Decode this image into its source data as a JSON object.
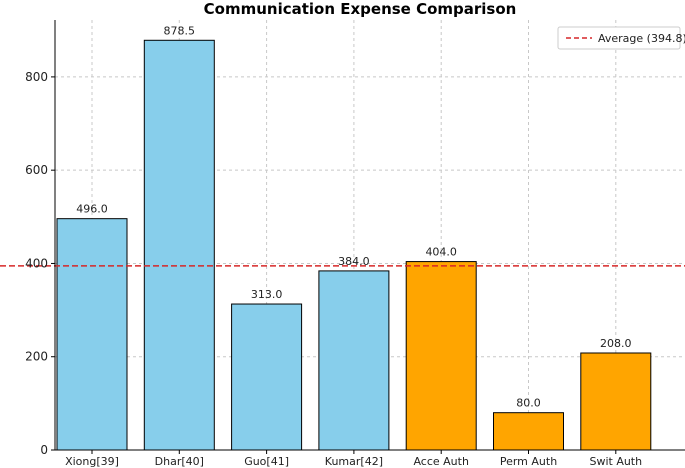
{
  "chart_data": {
    "type": "bar",
    "title": "Communication Expense Comparison",
    "xlabel": "",
    "ylabel": "",
    "categories": [
      "Xiong[39]",
      "Dhar[40]",
      "Guo[41]",
      "Kumar[42]",
      "Acce Auth",
      "Perm Auth",
      "Swit Auth"
    ],
    "values": [
      496.0,
      878.5,
      313.0,
      384.0,
      404.0,
      80.0,
      208.0
    ],
    "value_labels": [
      "496.0",
      "878.5",
      "313.0",
      "384.0",
      "404.0",
      "80.0",
      "208.0"
    ],
    "bar_colors": [
      "#87ceeb",
      "#87ceeb",
      "#87ceeb",
      "#87ceeb",
      "#ffa500",
      "#ffa500",
      "#ffa500"
    ],
    "ylim": [
      0,
      922
    ],
    "yticks": [
      0,
      200,
      400,
      600,
      800
    ],
    "grid": true,
    "average": {
      "value": 394.8,
      "label": "Average (394.8)",
      "color": "#d62728"
    },
    "legend_position": "top-right"
  }
}
